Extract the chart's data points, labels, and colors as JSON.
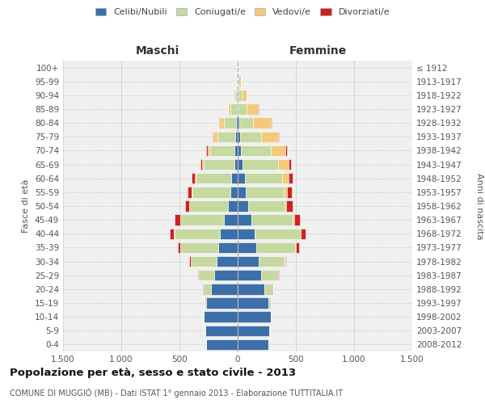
{
  "age_groups_bottom_to_top": [
    "0-4",
    "5-9",
    "10-14",
    "15-19",
    "20-24",
    "25-29",
    "30-34",
    "35-39",
    "40-44",
    "45-49",
    "50-54",
    "55-59",
    "60-64",
    "65-69",
    "70-74",
    "75-79",
    "80-84",
    "85-89",
    "90-94",
    "95-99",
    "100+"
  ],
  "birth_years_bottom_to_top": [
    "2008-2012",
    "2003-2007",
    "1998-2002",
    "1993-1997",
    "1988-1992",
    "1983-1987",
    "1978-1982",
    "1973-1977",
    "1968-1972",
    "1963-1967",
    "1958-1962",
    "1953-1957",
    "1948-1952",
    "1943-1947",
    "1938-1942",
    "1933-1937",
    "1928-1932",
    "1923-1927",
    "1918-1922",
    "1913-1917",
    "≤ 1912"
  ],
  "male_celibe": [
    270,
    280,
    290,
    270,
    230,
    200,
    180,
    165,
    150,
    120,
    80,
    65,
    55,
    30,
    25,
    20,
    15,
    8,
    4,
    2,
    2
  ],
  "male_coniugato": [
    2,
    3,
    5,
    15,
    65,
    135,
    225,
    325,
    395,
    370,
    335,
    325,
    300,
    260,
    210,
    155,
    105,
    55,
    20,
    5,
    2
  ],
  "male_vedovo": [
    0,
    0,
    0,
    0,
    0,
    1,
    1,
    2,
    2,
    3,
    5,
    8,
    10,
    15,
    25,
    30,
    35,
    20,
    8,
    3,
    1
  ],
  "male_divorziato": [
    0,
    0,
    0,
    0,
    2,
    5,
    10,
    25,
    38,
    52,
    32,
    30,
    30,
    15,
    12,
    8,
    5,
    2,
    0,
    0,
    0
  ],
  "female_nubile": [
    265,
    272,
    282,
    262,
    232,
    202,
    182,
    160,
    145,
    120,
    90,
    70,
    60,
    40,
    30,
    20,
    15,
    10,
    5,
    2,
    2
  ],
  "female_coniugata": [
    2,
    3,
    5,
    20,
    72,
    142,
    222,
    335,
    395,
    355,
    315,
    325,
    325,
    305,
    255,
    182,
    120,
    65,
    30,
    8,
    2
  ],
  "female_vedova": [
    0,
    0,
    0,
    0,
    1,
    2,
    3,
    5,
    5,
    10,
    15,
    32,
    50,
    90,
    122,
    142,
    152,
    102,
    40,
    15,
    5
  ],
  "female_divorziata": [
    0,
    0,
    0,
    0,
    2,
    5,
    10,
    25,
    38,
    52,
    52,
    35,
    35,
    20,
    15,
    10,
    8,
    3,
    1,
    0,
    0
  ],
  "colors": {
    "celibe": "#3d6fa8",
    "coniugato": "#c5d9a0",
    "vedovo": "#f5c97a",
    "divorziato": "#cc2222"
  },
  "xlim": 1500,
  "title": "Popolazione per età, sesso e stato civile - 2013",
  "subtitle": "COMUNE DI MUGGIÒ (MB) - Dati ISTAT 1° gennaio 2013 - Elaborazione TUTTITALIA.IT",
  "ylabel_left": "Fasce di età",
  "ylabel_right": "Anni di nascita",
  "xlabel_left": "Maschi",
  "xlabel_right": "Femmine",
  "bg_color": "#ffffff",
  "plot_bg_color": "#f0f0f0",
  "grid_color": "#cccccc"
}
